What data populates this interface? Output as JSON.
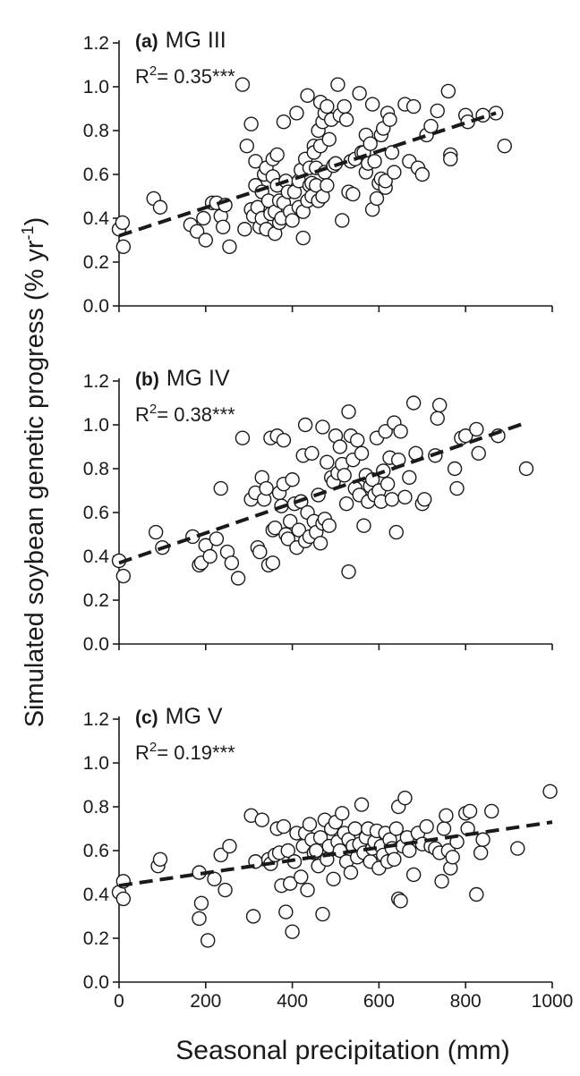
{
  "figure": {
    "ylabel_main": "Simulated soybean genetic progress (% yr",
    "ylabel_sup": "-1",
    "ylabel_close": ")",
    "xlabel": "Seasonal precipitation  (mm)"
  },
  "chart_data": [
    {
      "type": "scatter",
      "panel_tag": "(a)",
      "panel_name": "MG III",
      "r2_prefix": "R",
      "r2_sup": "2",
      "r2_value": "= 0.35***",
      "xlim": [
        0,
        1000
      ],
      "ylim": [
        0,
        1.2
      ],
      "xticks": [
        0,
        200,
        400,
        600,
        800,
        1000
      ],
      "yticks": [
        "0.0",
        "0.2",
        "0.4",
        "0.6",
        "0.8",
        "1.0",
        "1.2"
      ],
      "show_x_tick_labels": false,
      "grid": false,
      "trend": {
        "x": [
          0,
          870
        ],
        "y": [
          0.32,
          0.88
        ],
        "style": "dashed"
      },
      "points": [
        [
          0,
          0.35
        ],
        [
          8,
          0.38
        ],
        [
          10,
          0.27
        ],
        [
          80,
          0.49
        ],
        [
          95,
          0.45
        ],
        [
          165,
          0.37
        ],
        [
          180,
          0.34
        ],
        [
          195,
          0.4
        ],
        [
          200,
          0.3
        ],
        [
          215,
          0.47
        ],
        [
          225,
          0.47
        ],
        [
          235,
          0.41
        ],
        [
          240,
          0.36
        ],
        [
          245,
          0.46
        ],
        [
          255,
          0.27
        ],
        [
          285,
          1.01
        ],
        [
          290,
          0.35
        ],
        [
          295,
          0.73
        ],
        [
          305,
          0.83
        ],
        [
          305,
          0.44
        ],
        [
          310,
          0.41
        ],
        [
          315,
          0.66
        ],
        [
          315,
          0.55
        ],
        [
          320,
          0.45
        ],
        [
          325,
          0.36
        ],
        [
          330,
          0.4
        ],
        [
          330,
          0.52
        ],
        [
          335,
          0.6
        ],
        [
          340,
          0.63
        ],
        [
          340,
          0.35
        ],
        [
          345,
          0.48
        ],
        [
          350,
          0.42
        ],
        [
          355,
          0.59
        ],
        [
          355,
          0.67
        ],
        [
          360,
          0.33
        ],
        [
          360,
          0.43
        ],
        [
          365,
          0.69
        ],
        [
          365,
          0.55
        ],
        [
          370,
          0.48
        ],
        [
          370,
          0.38
        ],
        [
          375,
          0.4
        ],
        [
          380,
          0.84
        ],
        [
          380,
          0.47
        ],
        [
          385,
          0.57
        ],
        [
          390,
          0.52
        ],
        [
          395,
          0.43
        ],
        [
          400,
          0.39
        ],
        [
          405,
          0.52
        ],
        [
          410,
          0.88
        ],
        [
          415,
          0.45
        ],
        [
          415,
          0.57
        ],
        [
          420,
          0.62
        ],
        [
          425,
          0.43
        ],
        [
          425,
          0.31
        ],
        [
          430,
          0.67
        ],
        [
          435,
          0.96
        ],
        [
          435,
          0.48
        ],
        [
          440,
          0.55
        ],
        [
          440,
          0.63
        ],
        [
          445,
          0.56
        ],
        [
          445,
          0.5
        ],
        [
          450,
          0.73
        ],
        [
          450,
          0.7
        ],
        [
          455,
          0.63
        ],
        [
          455,
          0.55
        ],
        [
          460,
          0.8
        ],
        [
          460,
          0.48
        ],
        [
          465,
          0.93
        ],
        [
          465,
          0.73
        ],
        [
          470,
          0.84
        ],
        [
          470,
          0.5
        ],
        [
          475,
          0.88
        ],
        [
          475,
          0.61
        ],
        [
          480,
          0.91
        ],
        [
          480,
          0.55
        ],
        [
          485,
          0.76
        ],
        [
          490,
          0.85
        ],
        [
          495,
          0.64
        ],
        [
          500,
          0.65
        ],
        [
          505,
          1.01
        ],
        [
          510,
          0.87
        ],
        [
          515,
          0.39
        ],
        [
          520,
          0.91
        ],
        [
          525,
          0.85
        ],
        [
          530,
          0.52
        ],
        [
          535,
          0.66
        ],
        [
          540,
          0.51
        ],
        [
          545,
          0.67
        ],
        [
          555,
          0.97
        ],
        [
          560,
          0.7
        ],
        [
          565,
          0.7
        ],
        [
          570,
          0.78
        ],
        [
          570,
          0.61
        ],
        [
          575,
          0.65
        ],
        [
          580,
          0.74
        ],
        [
          585,
          0.92
        ],
        [
          585,
          0.44
        ],
        [
          590,
          0.66
        ],
        [
          595,
          0.49
        ],
        [
          600,
          0.56
        ],
        [
          605,
          0.78
        ],
        [
          605,
          0.58
        ],
        [
          610,
          0.81
        ],
        [
          615,
          0.54
        ],
        [
          615,
          0.57
        ],
        [
          620,
          0.88
        ],
        [
          625,
          0.85
        ],
        [
          630,
          0.7
        ],
        [
          635,
          0.61
        ],
        [
          660,
          0.92
        ],
        [
          670,
          0.66
        ],
        [
          680,
          0.91
        ],
        [
          690,
          0.63
        ],
        [
          700,
          0.6
        ],
        [
          710,
          0.78
        ],
        [
          720,
          0.82
        ],
        [
          735,
          0.89
        ],
        [
          760,
          0.98
        ],
        [
          765,
          0.69
        ],
        [
          765,
          0.67
        ],
        [
          800,
          0.87
        ],
        [
          805,
          0.84
        ],
        [
          840,
          0.87
        ],
        [
          870,
          0.88
        ],
        [
          890,
          0.73
        ]
      ]
    },
    {
      "type": "scatter",
      "panel_tag": "(b)",
      "panel_name": "MG IV",
      "r2_prefix": "R",
      "r2_sup": "2",
      "r2_value": "= 0.38***",
      "xlim": [
        0,
        1000
      ],
      "ylim": [
        0,
        1.2
      ],
      "xticks": [
        0,
        200,
        400,
        600,
        800,
        1000
      ],
      "yticks": [
        "0.0",
        "0.2",
        "0.4",
        "0.6",
        "0.8",
        "1.0",
        "1.2"
      ],
      "show_x_tick_labels": false,
      "grid": false,
      "trend": {
        "x": [
          0,
          940
        ],
        "y": [
          0.37,
          1.01
        ],
        "style": "dashed"
      },
      "points": [
        [
          0,
          0.38
        ],
        [
          10,
          0.31
        ],
        [
          85,
          0.51
        ],
        [
          100,
          0.44
        ],
        [
          170,
          0.49
        ],
        [
          185,
          0.36
        ],
        [
          190,
          0.37
        ],
        [
          200,
          0.45
        ],
        [
          210,
          0.4
        ],
        [
          225,
          0.48
        ],
        [
          235,
          0.71
        ],
        [
          250,
          0.42
        ],
        [
          260,
          0.37
        ],
        [
          275,
          0.3
        ],
        [
          285,
          0.94
        ],
        [
          305,
          0.66
        ],
        [
          315,
          0.69
        ],
        [
          320,
          0.44
        ],
        [
          325,
          0.42
        ],
        [
          330,
          0.76
        ],
        [
          335,
          0.66
        ],
        [
          340,
          0.71
        ],
        [
          345,
          0.36
        ],
        [
          350,
          0.94
        ],
        [
          355,
          0.37
        ],
        [
          355,
          0.52
        ],
        [
          360,
          0.53
        ],
        [
          365,
          0.95
        ],
        [
          370,
          0.69
        ],
        [
          375,
          0.63
        ],
        [
          380,
          0.73
        ],
        [
          380,
          0.93
        ],
        [
          385,
          0.5
        ],
        [
          390,
          0.48
        ],
        [
          395,
          0.56
        ],
        [
          400,
          0.75
        ],
        [
          405,
          0.64
        ],
        [
          410,
          0.44
        ],
        [
          415,
          0.52
        ],
        [
          420,
          0.65
        ],
        [
          425,
          0.86
        ],
        [
          430,
          0.47
        ],
        [
          430,
          1.0
        ],
        [
          435,
          0.6
        ],
        [
          440,
          0.49
        ],
        [
          445,
          0.87
        ],
        [
          450,
          0.56
        ],
        [
          455,
          0.51
        ],
        [
          460,
          0.68
        ],
        [
          465,
          0.46
        ],
        [
          470,
          0.55
        ],
        [
          470,
          0.99
        ],
        [
          475,
          0.57
        ],
        [
          480,
          0.83
        ],
        [
          485,
          0.54
        ],
        [
          490,
          0.76
        ],
        [
          495,
          0.74
        ],
        [
          500,
          0.95
        ],
        [
          505,
          0.78
        ],
        [
          510,
          0.9
        ],
        [
          515,
          0.82
        ],
        [
          520,
          0.77
        ],
        [
          525,
          0.64
        ],
        [
          530,
          1.06
        ],
        [
          530,
          0.33
        ],
        [
          535,
          0.95
        ],
        [
          540,
          0.84
        ],
        [
          545,
          0.71
        ],
        [
          550,
          0.93
        ],
        [
          555,
          0.68
        ],
        [
          560,
          0.87
        ],
        [
          565,
          0.54
        ],
        [
          570,
          0.77
        ],
        [
          575,
          0.65
        ],
        [
          580,
          0.72
        ],
        [
          585,
          0.75
        ],
        [
          590,
          0.68
        ],
        [
          595,
          0.94
        ],
        [
          600,
          0.7
        ],
        [
          605,
          0.65
        ],
        [
          610,
          0.79
        ],
        [
          615,
          0.97
        ],
        [
          620,
          0.73
        ],
        [
          625,
          0.85
        ],
        [
          630,
          0.66
        ],
        [
          635,
          1.01
        ],
        [
          640,
          0.51
        ],
        [
          645,
          0.84
        ],
        [
          650,
          0.97
        ],
        [
          660,
          0.67
        ],
        [
          670,
          0.76
        ],
        [
          680,
          1.1
        ],
        [
          685,
          0.87
        ],
        [
          700,
          0.64
        ],
        [
          705,
          0.66
        ],
        [
          730,
          0.86
        ],
        [
          735,
          1.03
        ],
        [
          740,
          1.09
        ],
        [
          775,
          0.8
        ],
        [
          780,
          0.71
        ],
        [
          790,
          0.94
        ],
        [
          800,
          0.95
        ],
        [
          825,
          0.98
        ],
        [
          830,
          0.87
        ],
        [
          875,
          0.95
        ],
        [
          940,
          0.8
        ]
      ]
    },
    {
      "type": "scatter",
      "panel_tag": "(c)",
      "panel_name": "MG V",
      "r2_prefix": "R",
      "r2_sup": "2",
      "r2_value": "= 0.19***",
      "xlim": [
        0,
        1000
      ],
      "ylim": [
        0,
        1.2
      ],
      "xticks": [
        0,
        200,
        400,
        600,
        800,
        1000
      ],
      "yticks": [
        "0.0",
        "0.2",
        "0.4",
        "0.6",
        "0.8",
        "1.0",
        "1.2"
      ],
      "show_x_tick_labels": true,
      "xtick_labels": [
        "0",
        "200",
        "400",
        "600",
        "800",
        "1000"
      ],
      "grid": false,
      "trend": {
        "x": [
          0,
          1000
        ],
        "y": [
          0.44,
          0.73
        ],
        "style": "dashed"
      },
      "points": [
        [
          0,
          0.41
        ],
        [
          10,
          0.46
        ],
        [
          10,
          0.38
        ],
        [
          90,
          0.53
        ],
        [
          95,
          0.56
        ],
        [
          185,
          0.5
        ],
        [
          185,
          0.29
        ],
        [
          190,
          0.36
        ],
        [
          205,
          0.19
        ],
        [
          220,
          0.47
        ],
        [
          235,
          0.58
        ],
        [
          245,
          0.42
        ],
        [
          255,
          0.62
        ],
        [
          305,
          0.76
        ],
        [
          310,
          0.3
        ],
        [
          315,
          0.55
        ],
        [
          330,
          0.74
        ],
        [
          345,
          0.56
        ],
        [
          350,
          0.54
        ],
        [
          360,
          0.58
        ],
        [
          365,
          0.7
        ],
        [
          370,
          0.59
        ],
        [
          375,
          0.44
        ],
        [
          380,
          0.71
        ],
        [
          385,
          0.32
        ],
        [
          390,
          0.6
        ],
        [
          395,
          0.45
        ],
        [
          400,
          0.23
        ],
        [
          405,
          0.55
        ],
        [
          410,
          0.68
        ],
        [
          420,
          0.48
        ],
        [
          425,
          0.62
        ],
        [
          430,
          0.68
        ],
        [
          435,
          0.42
        ],
        [
          440,
          0.72
        ],
        [
          445,
          0.65
        ],
        [
          450,
          0.59
        ],
        [
          455,
          0.6
        ],
        [
          460,
          0.53
        ],
        [
          465,
          0.66
        ],
        [
          470,
          0.31
        ],
        [
          475,
          0.74
        ],
        [
          480,
          0.56
        ],
        [
          485,
          0.62
        ],
        [
          490,
          0.7
        ],
        [
          495,
          0.47
        ],
        [
          500,
          0.73
        ],
        [
          505,
          0.64
        ],
        [
          510,
          0.6
        ],
        [
          515,
          0.77
        ],
        [
          520,
          0.68
        ],
        [
          525,
          0.55
        ],
        [
          530,
          0.65
        ],
        [
          535,
          0.5
        ],
        [
          540,
          0.62
        ],
        [
          545,
          0.7
        ],
        [
          550,
          0.57
        ],
        [
          555,
          0.63
        ],
        [
          560,
          0.81
        ],
        [
          565,
          0.59
        ],
        [
          570,
          0.66
        ],
        [
          575,
          0.7
        ],
        [
          580,
          0.55
        ],
        [
          585,
          0.61
        ],
        [
          590,
          0.64
        ],
        [
          595,
          0.69
        ],
        [
          600,
          0.52
        ],
        [
          605,
          0.62
        ],
        [
          610,
          0.58
        ],
        [
          615,
          0.68
        ],
        [
          620,
          0.55
        ],
        [
          625,
          0.65
        ],
        [
          630,
          0.61
        ],
        [
          635,
          0.56
        ],
        [
          640,
          0.7
        ],
        [
          645,
          0.38
        ],
        [
          645,
          0.8
        ],
        [
          650,
          0.37
        ],
        [
          655,
          0.62
        ],
        [
          660,
          0.84
        ],
        [
          665,
          0.66
        ],
        [
          670,
          0.6
        ],
        [
          680,
          0.49
        ],
        [
          690,
          0.68
        ],
        [
          700,
          0.63
        ],
        [
          710,
          0.71
        ],
        [
          720,
          0.62
        ],
        [
          730,
          0.61
        ],
        [
          740,
          0.59
        ],
        [
          745,
          0.46
        ],
        [
          750,
          0.7
        ],
        [
          755,
          0.76
        ],
        [
          760,
          0.6
        ],
        [
          765,
          0.52
        ],
        [
          770,
          0.57
        ],
        [
          780,
          0.64
        ],
        [
          800,
          0.77
        ],
        [
          805,
          0.7
        ],
        [
          810,
          0.78
        ],
        [
          825,
          0.4
        ],
        [
          835,
          0.59
        ],
        [
          840,
          0.65
        ],
        [
          860,
          0.78
        ],
        [
          920,
          0.61
        ],
        [
          995,
          0.87
        ]
      ]
    }
  ]
}
